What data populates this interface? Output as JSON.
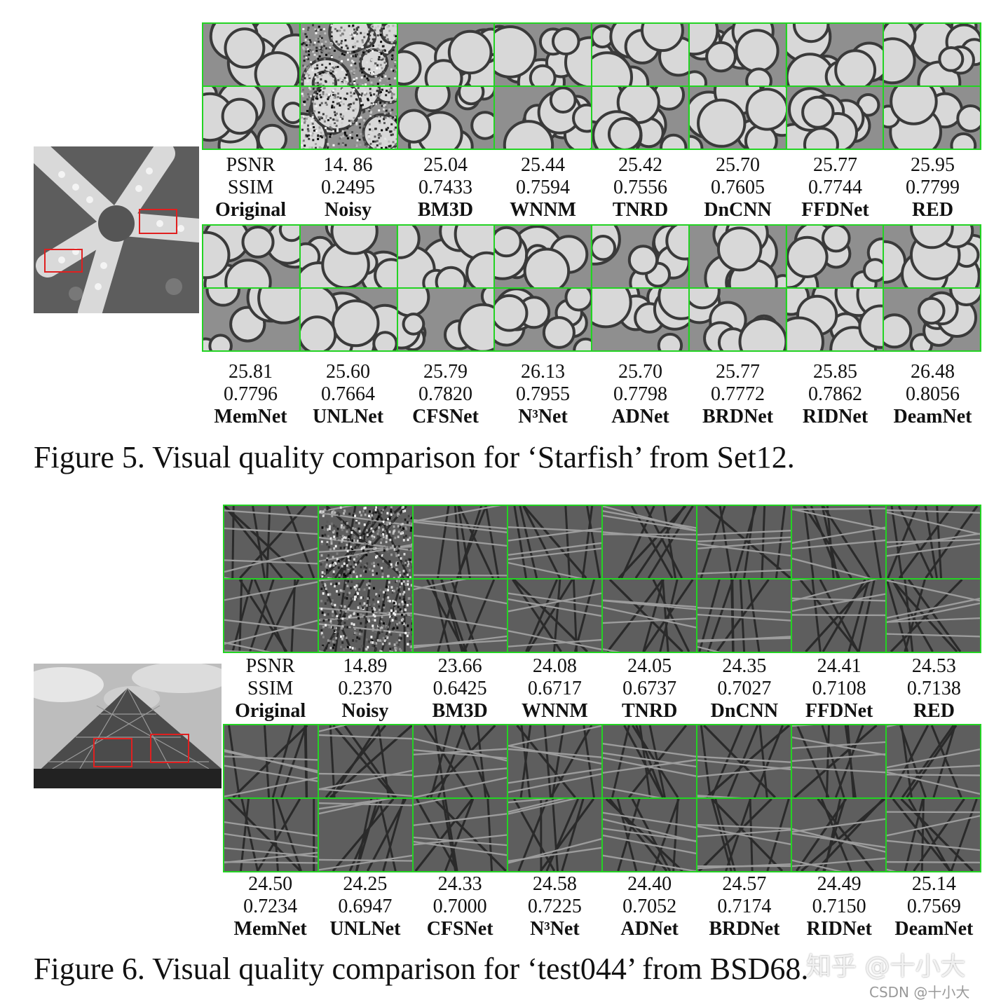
{
  "figure5": {
    "caption": "Figure 5. Visual quality comparison for ‘Starfish’ from Set12.",
    "row1": {
      "psnr": [
        "PSNR",
        "14. 86",
        "25.04",
        "25.44",
        "25.42",
        "25.70",
        "25.77",
        "25.95"
      ],
      "ssim": [
        "SSIM",
        "0.2495",
        "0.7433",
        "0.7594",
        "0.7556",
        "0.7605",
        "0.7744",
        "0.7799"
      ],
      "names": [
        "Original",
        "Noisy",
        "BM3D",
        "WNNM",
        "TNRD",
        "DnCNN",
        "FFDNet",
        "RED"
      ]
    },
    "row2": {
      "psnr": [
        "25.81",
        "25.60",
        "25.79",
        "26.13",
        "25.70",
        "25.77",
        "25.85",
        "26.48"
      ],
      "ssim": [
        "0.7796",
        "0.7664",
        "0.7820",
        "0.7955",
        "0.7798",
        "0.7772",
        "0.7862",
        "0.8056"
      ],
      "names": [
        "MemNet",
        "UNLNet",
        "CFSNet",
        "N³Net",
        "ADNet",
        "BRDNet",
        "RIDNet",
        "DeamNet"
      ]
    }
  },
  "figure6": {
    "caption": "Figure 6. Visual quality comparison for ‘test044’ from BSD68.",
    "row1": {
      "psnr": [
        "PSNR",
        "14.89",
        "23.66",
        "24.08",
        "24.05",
        "24.35",
        "24.41",
        "24.53"
      ],
      "ssim": [
        "SSIM",
        "0.2370",
        "0.6425",
        "0.6717",
        "0.6737",
        "0.7027",
        "0.7108",
        "0.7138"
      ],
      "names": [
        "Original",
        "Noisy",
        "BM3D",
        "WNNM",
        "TNRD",
        "DnCNN",
        "FFDNet",
        "RED"
      ]
    },
    "row2": {
      "psnr": [
        "24.50",
        "24.25",
        "24.33",
        "24.58",
        "24.40",
        "24.57",
        "24.49",
        "25.14"
      ],
      "ssim": [
        "0.7234",
        "0.6947",
        "0.7000",
        "0.7225",
        "0.7052",
        "0.7174",
        "0.7150",
        "0.7569"
      ],
      "names": [
        "MemNet",
        "UNLNet",
        "CFSNet",
        "N³Net",
        "ADNet",
        "BRDNet",
        "RIDNet",
        "DeamNet"
      ]
    }
  },
  "watermark": {
    "zhihu": "知乎 @十小大",
    "csdn": "CSDN @十小大"
  },
  "colors": {
    "crop_border": "#23d323",
    "roi_box": "#e02020"
  }
}
